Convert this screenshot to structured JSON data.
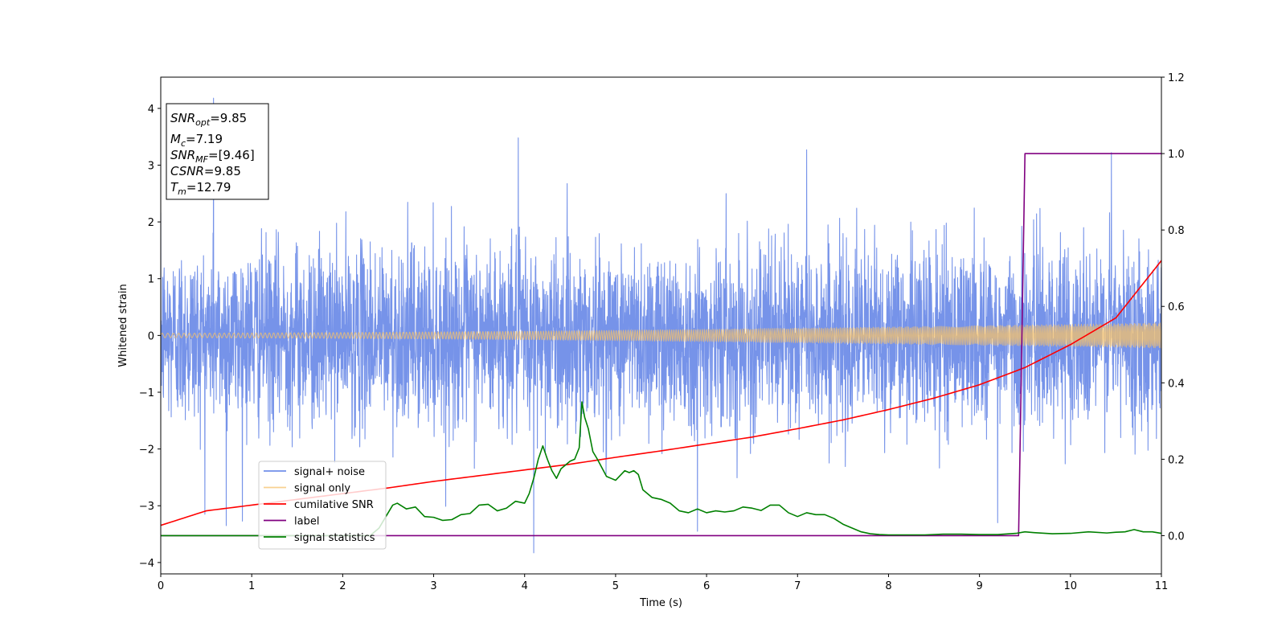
{
  "chart_data": {
    "type": "line",
    "xlabel": "Time (s)",
    "ylabel": "Whitened strain",
    "xlim": [
      0,
      11
    ],
    "ylim_left": [
      -4.2,
      4.55
    ],
    "ylim_right": [
      -0.1,
      1.2
    ],
    "x_ticks": [
      0,
      1,
      2,
      3,
      4,
      5,
      6,
      7,
      8,
      9,
      10,
      11
    ],
    "y_left_ticks": [
      -4,
      -3,
      -2,
      -1,
      0,
      1,
      2,
      3,
      4
    ],
    "y_left_tick_labels": [
      "−4",
      "−3",
      "−2",
      "−1",
      "0",
      "1",
      "2",
      "3",
      "4"
    ],
    "y_right_ticks": [
      0.0,
      0.2,
      0.4,
      0.6,
      0.8,
      1.0,
      1.2
    ],
    "y_right_tick_labels": [
      "0.0",
      "0.2",
      "0.4",
      "0.6",
      "0.8",
      "1.0",
      "1.2"
    ],
    "grid": false,
    "legend_position": "lower-left",
    "info_box": {
      "snr_opt": {
        "base": "SNR",
        "sub": "opt",
        "value": "=9.85"
      },
      "mc": {
        "base": "M",
        "sub": "c",
        "value": "=7.19"
      },
      "snr_mf": {
        "base": "SNR",
        "sub": "MF",
        "value": "=[9.46]"
      },
      "csnr": {
        "base": "CSNR",
        "value": "=9.85"
      },
      "tm": {
        "base": "T",
        "sub": "m",
        "value": "=12.79"
      }
    },
    "series": [
      {
        "name": "signal+ noise",
        "axis": "left",
        "color": "#4169e1",
        "kind": "noise",
        "t_range": [
          0,
          11
        ],
        "std": 1.0,
        "peaks": [
          {
            "x": 0.58,
            "y": 4.18
          },
          {
            "x": 3.93,
            "y": 3.48
          },
          {
            "x": 7.1,
            "y": 3.27
          },
          {
            "x": 10.45,
            "y": 3.22
          },
          {
            "x": 4.1,
            "y": -3.83
          },
          {
            "x": 0.72,
            "y": -3.35
          },
          {
            "x": 9.2,
            "y": -3.3
          },
          {
            "x": 5.9,
            "y": -3.45
          }
        ]
      },
      {
        "name": "signal only",
        "axis": "left",
        "color": "#f5c26b",
        "kind": "chirp",
        "amplitude_start": 0.04,
        "amplitude_end": 0.22
      },
      {
        "name": "cumilative SNR",
        "axis": "right",
        "color": "#ff0000",
        "x": [
          0,
          0.5,
          1,
          1.5,
          2,
          2.5,
          3,
          3.5,
          4,
          4.5,
          5,
          5.5,
          6,
          6.5,
          7,
          7.5,
          8,
          8.5,
          9,
          9.5,
          10,
          10.5,
          11
        ],
        "y": [
          0.027,
          0.065,
          0.08,
          0.095,
          0.11,
          0.125,
          0.142,
          0.157,
          0.172,
          0.187,
          0.205,
          0.222,
          0.24,
          0.258,
          0.28,
          0.303,
          0.33,
          0.36,
          0.395,
          0.44,
          0.5,
          0.57,
          0.72
        ]
      },
      {
        "name": "label",
        "axis": "right",
        "color": "#800080",
        "x": [
          0,
          9.43,
          9.5,
          11
        ],
        "y": [
          0,
          0,
          1,
          1
        ]
      },
      {
        "name": "signal statistics",
        "axis": "right",
        "color": "#008000",
        "x": [
          0,
          2.3,
          2.4,
          2.45,
          2.5,
          2.55,
          2.6,
          2.7,
          2.8,
          2.9,
          3.0,
          3.1,
          3.2,
          3.3,
          3.4,
          3.5,
          3.6,
          3.7,
          3.8,
          3.9,
          4.0,
          4.05,
          4.1,
          4.15,
          4.2,
          4.25,
          4.3,
          4.35,
          4.4,
          4.45,
          4.5,
          4.55,
          4.6,
          4.63,
          4.66,
          4.7,
          4.75,
          4.8,
          4.9,
          5.0,
          5.1,
          5.15,
          5.2,
          5.25,
          5.3,
          5.4,
          5.5,
          5.6,
          5.7,
          5.8,
          5.9,
          6.0,
          6.1,
          6.2,
          6.3,
          6.4,
          6.5,
          6.6,
          6.7,
          6.8,
          6.9,
          7.0,
          7.1,
          7.2,
          7.3,
          7.4,
          7.5,
          7.6,
          7.7,
          7.8,
          7.9,
          8.0,
          8.2,
          8.4,
          8.6,
          8.8,
          9.0,
          9.2,
          9.4,
          9.5,
          9.6,
          9.8,
          10.0,
          10.2,
          10.4,
          10.5,
          10.6,
          10.7,
          10.8,
          10.9,
          11.0
        ],
        "y": [
          0.0,
          0.0,
          0.02,
          0.04,
          0.06,
          0.08,
          0.085,
          0.07,
          0.075,
          0.05,
          0.048,
          0.04,
          0.042,
          0.055,
          0.058,
          0.08,
          0.082,
          0.065,
          0.072,
          0.09,
          0.085,
          0.11,
          0.15,
          0.2,
          0.235,
          0.2,
          0.17,
          0.15,
          0.175,
          0.185,
          0.195,
          0.2,
          0.23,
          0.35,
          0.31,
          0.28,
          0.22,
          0.2,
          0.155,
          0.145,
          0.17,
          0.165,
          0.17,
          0.16,
          0.12,
          0.1,
          0.095,
          0.085,
          0.065,
          0.06,
          0.07,
          0.06,
          0.065,
          0.062,
          0.065,
          0.075,
          0.072,
          0.066,
          0.08,
          0.08,
          0.06,
          0.05,
          0.06,
          0.055,
          0.055,
          0.045,
          0.03,
          0.02,
          0.01,
          0.005,
          0.003,
          0.002,
          0.002,
          0.002,
          0.004,
          0.004,
          0.003,
          0.003,
          0.006,
          0.01,
          0.008,
          0.005,
          0.006,
          0.01,
          0.007,
          0.009,
          0.01,
          0.016,
          0.01,
          0.01,
          0.006
        ]
      }
    ]
  }
}
